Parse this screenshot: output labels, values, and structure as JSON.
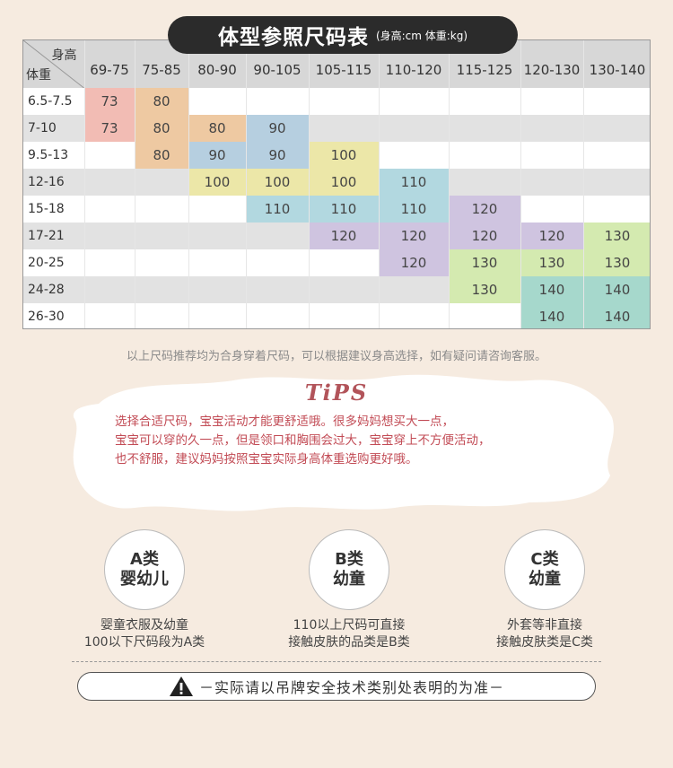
{
  "title": {
    "main": "体型参照尺码表",
    "sub": "(身高:cm 体重:kg)"
  },
  "table": {
    "corner_top": "身高",
    "corner_bottom": "体重",
    "height_columns": [
      "69-75",
      "75-85",
      "80-90",
      "90-105",
      "105-115",
      "110-120",
      "115-125",
      "120-130",
      "130-140"
    ],
    "rows": [
      {
        "weight": "6.5-7.5",
        "cells": [
          "73",
          "80",
          "",
          "",
          "",
          "",
          "",
          "",
          ""
        ]
      },
      {
        "weight": "7-10",
        "cells": [
          "73",
          "80",
          "80",
          "90",
          "",
          "",
          "",
          "",
          ""
        ]
      },
      {
        "weight": "9.5-13",
        "cells": [
          "",
          "80",
          "90",
          "90",
          "100",
          "",
          "",
          "",
          ""
        ]
      },
      {
        "weight": "12-16",
        "cells": [
          "",
          "",
          "100",
          "100",
          "100",
          "110",
          "",
          "",
          ""
        ]
      },
      {
        "weight": "15-18",
        "cells": [
          "",
          "",
          "",
          "110",
          "110",
          "110",
          "120",
          "",
          ""
        ]
      },
      {
        "weight": "17-21",
        "cells": [
          "",
          "",
          "",
          "",
          "120",
          "120",
          "120",
          "120",
          "130"
        ]
      },
      {
        "weight": "20-25",
        "cells": [
          "",
          "",
          "",
          "",
          "",
          "120",
          "130",
          "130",
          "130"
        ]
      },
      {
        "weight": "24-28",
        "cells": [
          "",
          "",
          "",
          "",
          "",
          "",
          "130",
          "140",
          "140"
        ]
      },
      {
        "weight": "26-30",
        "cells": [
          "",
          "",
          "",
          "",
          "",
          "",
          "",
          "140",
          "140"
        ]
      }
    ],
    "size_colors": {
      "73": "#f2bcb4",
      "80": "#eec9a2",
      "90": "#b6cfe0",
      "100": "#ece7a8",
      "110": "#b2d8e0",
      "120": "#cfc4e0",
      "130": "#d4eab0",
      "140": "#a6d8cc"
    }
  },
  "note": "以上尺码推荐均为合身穿着尺码，可以根据建议身高选择，如有疑问请咨询客服。",
  "tips": {
    "title": "TiPS",
    "lines": [
      "选择合适尺码，宝宝活动才能更舒适哦。很多妈妈想买大一点，",
      "宝宝可以穿的久一点，但是领口和胸围会过大，宝宝穿上不方便活动，",
      "也不舒服，建议妈妈按照宝宝实际身高体重选购更好哦。"
    ]
  },
  "categories": [
    {
      "label1": "A类",
      "label2": "婴幼儿",
      "desc1": "婴童衣服及幼童",
      "desc2": "100以下尺码段为A类"
    },
    {
      "label1": "B类",
      "label2": "幼童",
      "desc1": "110以上尺码可直接",
      "desc2": "接触皮肤的品类是B类"
    },
    {
      "label1": "C类",
      "label2": "幼童",
      "desc1": "外套等非直接",
      "desc2": "接触皮肤类是C类"
    }
  ],
  "warning": {
    "icon": "warning-icon",
    "text": "－实际请以吊牌安全技术类别处表明的为准－"
  }
}
